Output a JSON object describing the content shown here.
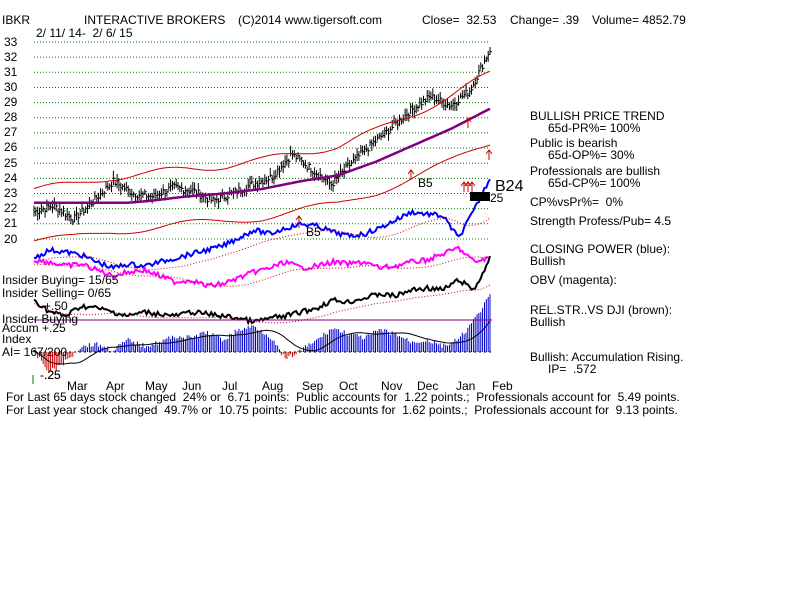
{
  "header": {
    "ticker": "IBKR",
    "name": "INTERACTIVE BROKERS",
    "copyright": "(C)2014 www.tigersoft.com",
    "close": "Close=  32.53",
    "change": "Change= .39",
    "volume": "Volume= 4852.79",
    "date_range": "2/ 11/ 14-  2/ 6/ 15"
  },
  "price_axis": {
    "ticks": [
      "33",
      "32",
      "31",
      "30",
      "29",
      "28",
      "27",
      "26",
      "25",
      "24",
      "23",
      "22",
      "21",
      "20"
    ]
  },
  "month_labels": [
    "Mar",
    "Apr",
    "May",
    "Jun",
    "Jul",
    "Aug",
    "Sep",
    "Oct",
    "Nov",
    "Dec",
    "Jan",
    "Feb"
  ],
  "signals": {
    "b5_a": "B5",
    "b5_b": "B5",
    "b24": "B24",
    "b25": "25"
  },
  "left_panel": {
    "insider_buying": "Insider Buying= 15/65",
    "insider_selling": "Insider Selling= 0/65",
    "plus50": "+.50",
    "insider_buying_accum": "Insider Buying",
    "accum": "Accum",
    "plus25": "+.25",
    "index": "Index",
    "ai": "AI= 167/200",
    "minus25": "-.25",
    "minus25b": "-.25"
  },
  "right_panel": {
    "trend": "BULLISH PRICE TREND",
    "pr": "65d-PR%= 100%",
    "public": "Public is bearish",
    "op": "65d-OP%= 30%",
    "pros": "Professionals are bullish",
    "cp": "65d-CP%= 100%",
    "cpvspr": "CP%vsPr%=  0%",
    "strength": "Strength Profess/Pub= 4.5",
    "closing_power": "CLOSING POWER (blue):",
    "closing_power_val": "Bullish",
    "obv": "OBV (magenta):",
    "relstr": "REL.STR..VS DJI (brown):",
    "relstr_val": "Bullish",
    "accum_text": "Bullish: Accumulation Rising.",
    "ip": "IP=  .572"
  },
  "footer": {
    "line1": "For Last 65 days stock changed  24% or  6.71 points:  Public accounts for  1.22 points.;  Professionals account for  5.49 points.",
    "line2": "For Last year stock changed  49.7% or  10.75 points:  Public accounts for  1.62 points.;  Professionals account for  9.13 points."
  },
  "colors": {
    "price": "#000000",
    "band": "#cc0000",
    "ma": "#800080",
    "closing_power": "#0000ff",
    "obv": "#ff00ff",
    "relstr": "#000000",
    "accum_pos": "#0000cc",
    "accum_neg": "#cc0000",
    "grid": "#008000",
    "signal": "#cc0000"
  },
  "chart_data": {
    "type": "line",
    "title": "INTERACTIVE BROKERS",
    "xlabel": "",
    "ylabel": "",
    "ylim": [
      20,
      33
    ],
    "categories": [
      "Mar",
      "Apr",
      "May",
      "Jun",
      "Jul",
      "Aug",
      "Sep",
      "Oct",
      "Nov",
      "Dec",
      "Jan",
      "Feb"
    ],
    "series": [
      {
        "name": "",
        "x": [
          "Feb",
          "Mar",
          "Mar",
          "Apr",
          "Apr",
          "May",
          "May",
          "Jun",
          "Jun",
          "Jul",
          "Jul",
          "Aug",
          "Aug",
          "Sep",
          "Sep",
          "Oct",
          "Oct",
          "Nov",
          "Nov",
          "Dec",
          "Dec",
          "Jan",
          "Jan",
          "Feb"
        ],
        "values": [
          21.8,
          22.2,
          21.3,
          22.5,
          23.8,
          23.0,
          22.8,
          23.4,
          23.2,
          22.5,
          23.0,
          23.6,
          24.1,
          25.6,
          24.6,
          23.6,
          25.0,
          26.2,
          27.3,
          28.5,
          29.4,
          28.8,
          29.8,
          32.5
        ]
      },
      {
        "name": "",
        "x": [
          "Feb",
          "Mar",
          "Apr",
          "May",
          "Jun",
          "Jul",
          "Aug",
          "Sep",
          "Oct",
          "Nov",
          "Dec",
          "Jan",
          "Feb"
        ],
        "values": [
          21.6,
          21.8,
          22.3,
          22.5,
          22.8,
          23.0,
          23.3,
          23.8,
          24.2,
          25.1,
          26.2,
          27.3,
          28.6
        ]
      }
    ]
  }
}
